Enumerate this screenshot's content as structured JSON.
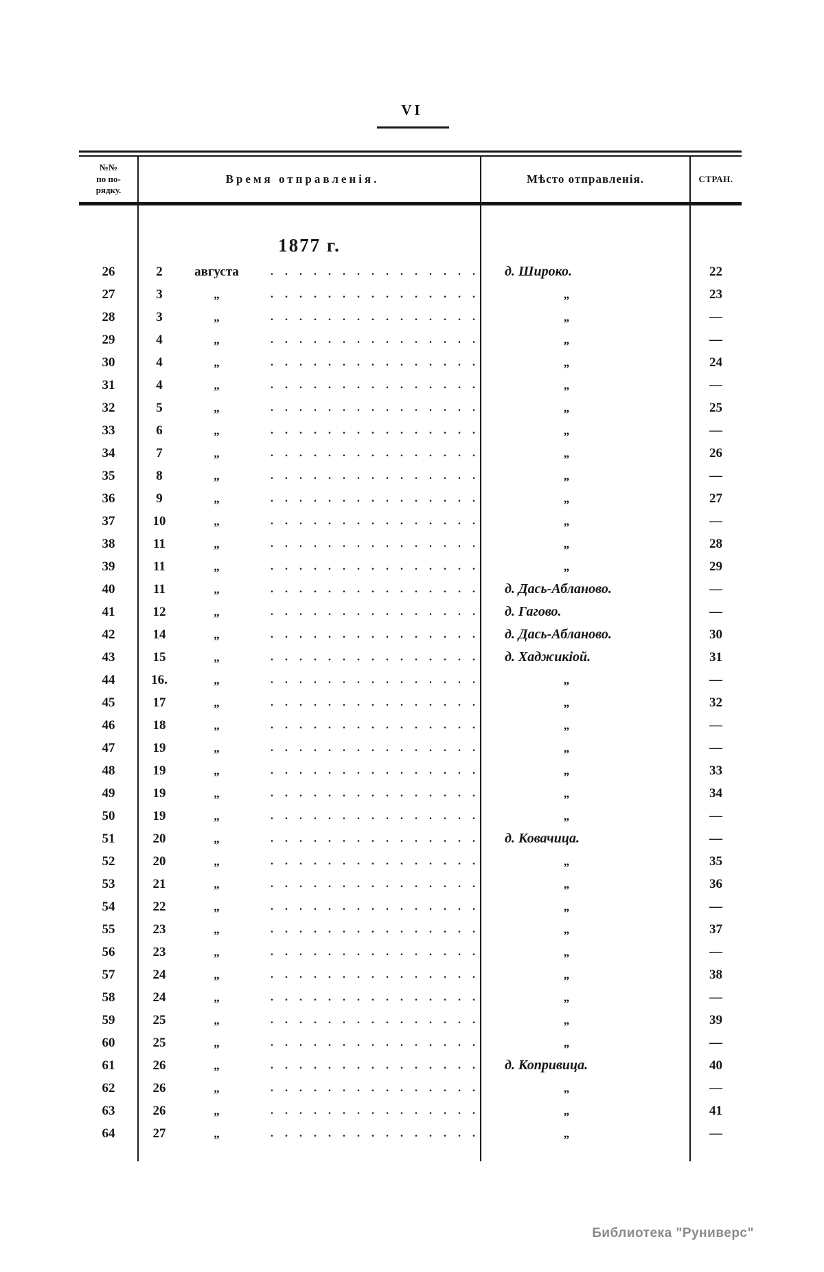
{
  "page": {
    "number": "VI",
    "footer": "Библиотека \"Руниверс\""
  },
  "table": {
    "col_headers": {
      "index_lines": [
        "№№",
        "по по-",
        "рядку."
      ],
      "time": "Время отправленія.",
      "place": "Мѣсто отправленія.",
      "page": "СТРАН."
    },
    "section_heading": "1877 г.",
    "leader_dots": "...............",
    "rows": [
      {
        "n": "26",
        "day": "2",
        "month": "августа",
        "place": "д. Широко.",
        "page": "22"
      },
      {
        "n": "27",
        "day": "3",
        "month": "„",
        "place": "„",
        "page": "23"
      },
      {
        "n": "28",
        "day": "3",
        "month": "„",
        "place": "„",
        "page": "—"
      },
      {
        "n": "29",
        "day": "4",
        "month": "„",
        "place": "„",
        "page": "—"
      },
      {
        "n": "30",
        "day": "4",
        "month": "„",
        "place": "„",
        "page": "24"
      },
      {
        "n": "31",
        "day": "4",
        "month": "„",
        "place": "„",
        "page": "—"
      },
      {
        "n": "32",
        "day": "5",
        "month": "„",
        "place": "„",
        "page": "25"
      },
      {
        "n": "33",
        "day": "6",
        "month": "„",
        "place": "„",
        "page": "—"
      },
      {
        "n": "34",
        "day": "7",
        "month": "„",
        "place": "„",
        "page": "26"
      },
      {
        "n": "35",
        "day": "8",
        "month": "„",
        "place": "„",
        "page": "—"
      },
      {
        "n": "36",
        "day": "9",
        "month": "„",
        "place": "„",
        "page": "27"
      },
      {
        "n": "37",
        "day": "10",
        "month": "„",
        "place": "„",
        "page": "—"
      },
      {
        "n": "38",
        "day": "11",
        "month": "„",
        "place": "„",
        "page": "28"
      },
      {
        "n": "39",
        "day": "11",
        "month": "„",
        "place": "„",
        "page": "29"
      },
      {
        "n": "40",
        "day": "11",
        "month": "„",
        "place": "д. Дась-Абланово.",
        "page": "—"
      },
      {
        "n": "41",
        "day": "12",
        "month": "„",
        "place": "д. Гагово.",
        "page": "—"
      },
      {
        "n": "42",
        "day": "14",
        "month": "„",
        "place": "д. Дась-Абланово.",
        "page": "30"
      },
      {
        "n": "43",
        "day": "15",
        "month": "„",
        "place": "д. Хаджикіой.",
        "page": "31"
      },
      {
        "n": "44",
        "day": "16.",
        "month": "„",
        "place": "„",
        "page": "—"
      },
      {
        "n": "45",
        "day": "17",
        "month": "„",
        "place": "„",
        "page": "32"
      },
      {
        "n": "46",
        "day": "18",
        "month": "„",
        "place": "„",
        "page": "—"
      },
      {
        "n": "47",
        "day": "19",
        "month": "„",
        "place": "„",
        "page": "—"
      },
      {
        "n": "48",
        "day": "19",
        "month": "„",
        "place": "„",
        "page": "33"
      },
      {
        "n": "49",
        "day": "19",
        "month": "„",
        "place": "„",
        "page": "34"
      },
      {
        "n": "50",
        "day": "19",
        "month": "„",
        "place": "„",
        "page": "—"
      },
      {
        "n": "51",
        "day": "20",
        "month": "„",
        "place": "д. Ковачица.",
        "page": "—"
      },
      {
        "n": "52",
        "day": "20",
        "month": "„",
        "place": "„",
        "page": "35"
      },
      {
        "n": "53",
        "day": "21",
        "month": "„",
        "place": "„",
        "page": "36"
      },
      {
        "n": "54",
        "day": "22",
        "month": "„",
        "place": "„",
        "page": "—"
      },
      {
        "n": "55",
        "day": "23",
        "month": "„",
        "place": "„",
        "page": "37"
      },
      {
        "n": "56",
        "day": "23",
        "month": "„",
        "place": "„",
        "page": "—"
      },
      {
        "n": "57",
        "day": "24",
        "month": "„",
        "place": "„",
        "page": "38"
      },
      {
        "n": "58",
        "day": "24",
        "month": "„",
        "place": "„",
        "page": "—"
      },
      {
        "n": "59",
        "day": "25",
        "month": "„",
        "place": "„",
        "page": "39"
      },
      {
        "n": "60",
        "day": "25",
        "month": "„",
        "place": "„",
        "page": "—"
      },
      {
        "n": "61",
        "day": "26",
        "month": "„",
        "place": "д. Копривица.",
        "page": "40"
      },
      {
        "n": "62",
        "day": "26",
        "month": "„",
        "place": "„",
        "page": "—"
      },
      {
        "n": "63",
        "day": "26",
        "month": "„",
        "place": "„",
        "page": "41"
      },
      {
        "n": "64",
        "day": "27",
        "month": "„",
        "place": "„",
        "page": "—"
      }
    ]
  }
}
